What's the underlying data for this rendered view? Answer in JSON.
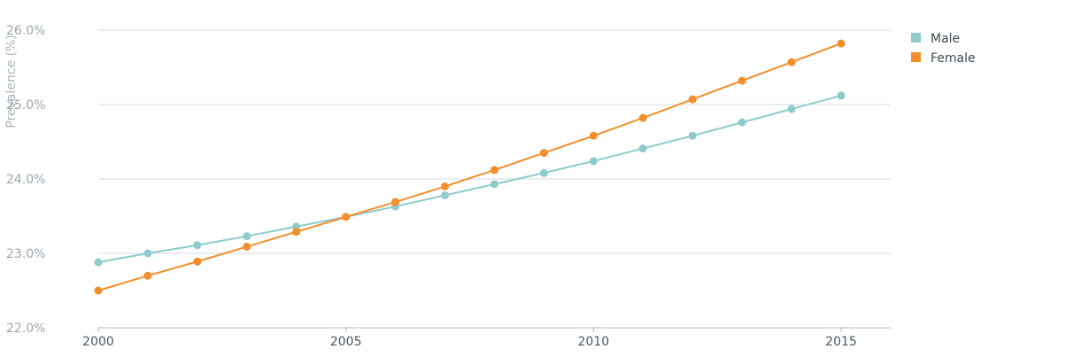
{
  "chart_data": {
    "type": "line",
    "ylabel": "Prevalence (%)",
    "xlabel": "",
    "x": [
      2000,
      2001,
      2002,
      2003,
      2004,
      2005,
      2006,
      2007,
      2008,
      2009,
      2010,
      2011,
      2012,
      2013,
      2014,
      2015
    ],
    "xlim": [
      2000,
      2016
    ],
    "x_ticks": [
      2000,
      2005,
      2010,
      2015
    ],
    "x_tick_labels": [
      "2000",
      "2005",
      "2010",
      "2015"
    ],
    "ylim": [
      22.0,
      26.0
    ],
    "y_ticks": [
      22.0,
      23.0,
      24.0,
      25.0,
      26.0
    ],
    "y_tick_labels": [
      "22.0%",
      "23.0%",
      "24.0%",
      "25.0%",
      "26.0%"
    ],
    "grid": true,
    "legend_position": "top-right",
    "series": [
      {
        "name": "Male",
        "color": "#8ecbca",
        "values": [
          22.88,
          23.0,
          23.11,
          23.23,
          23.36,
          23.49,
          23.63,
          23.78,
          23.93,
          24.08,
          24.24,
          24.41,
          24.58,
          24.76,
          24.94,
          25.12
        ]
      },
      {
        "name": "Female",
        "color": "#f28e2b",
        "values": [
          22.5,
          22.7,
          22.89,
          23.09,
          23.29,
          23.49,
          23.69,
          23.9,
          24.12,
          24.35,
          24.58,
          24.82,
          25.07,
          25.32,
          25.57,
          25.82
        ]
      }
    ]
  }
}
